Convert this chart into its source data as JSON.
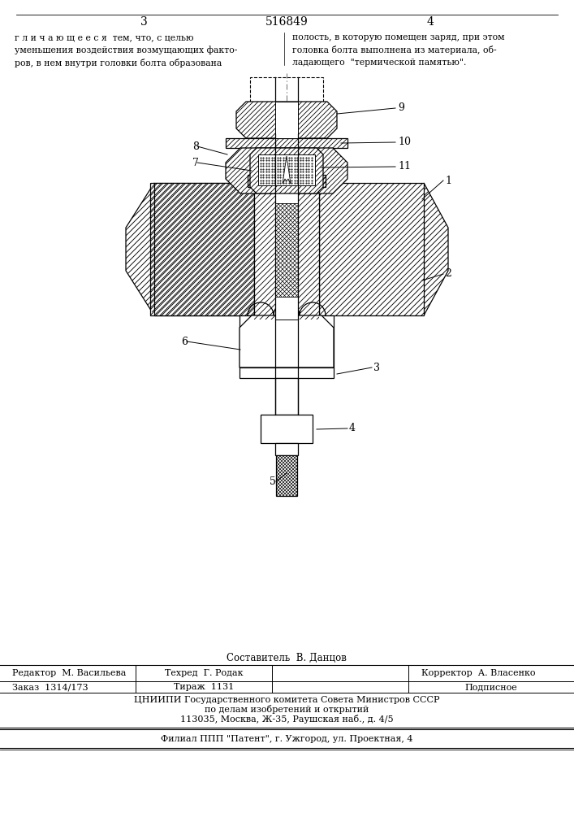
{
  "page_number_left": "3",
  "page_number_right": "4",
  "patent_number": "516849",
  "top_text_left": "г л и ч а ю щ е е с я  тем, что, с целью\nуменьшения воздействия возмущающих факто-\nров, в нем внутри головки болта образована",
  "top_text_right": "полость, в которую помещен заряд, при этом\nголовка болта выполнена из материала, об-\nладающего  \"термической памятью\".",
  "footer_composer": "Составитель  В. Данцов",
  "footer_editor": "Редактор  М. Васильева",
  "footer_tech": "Техред  Г. Родак",
  "footer_corrector": "Корректор  А. Власенко",
  "footer_order": "Заказ  1314/173",
  "footer_circulation": "Тираж  1131",
  "footer_subscription": "Подписное",
  "footer_tsniipi": "ЦНИИПИ Государственного комитета Совета Министров СССР",
  "footer_affairs": "по делам изобретений и открытий",
  "footer_address": "113035, Москва, Ж-35, Раушская наб., д. 4/5",
  "footer_filial": "Филиал ППП \"Патент\", г. Ужгород, ул. Проектная, 4",
  "bg_color": "#ffffff",
  "line_color": "#000000"
}
